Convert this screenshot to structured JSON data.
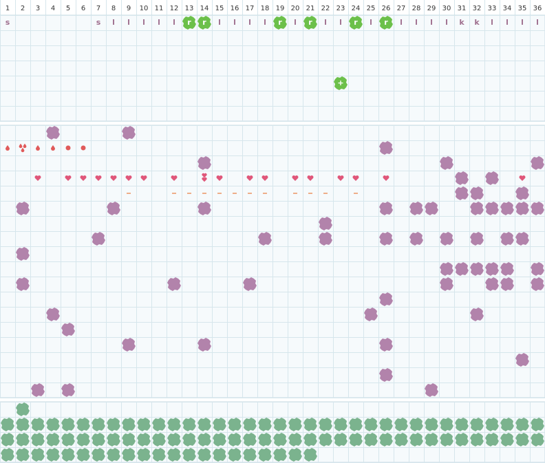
{
  "columns": [
    1,
    2,
    3,
    4,
    5,
    6,
    7,
    8,
    9,
    10,
    11,
    12,
    13,
    14,
    15,
    16,
    17,
    18,
    19,
    20,
    21,
    22,
    23,
    24,
    25,
    26,
    27,
    28,
    29,
    30,
    31,
    32,
    33,
    34,
    35,
    36
  ],
  "letter_row": [
    "s",
    null,
    null,
    null,
    null,
    null,
    "s",
    "l",
    "l",
    "l",
    "l",
    "l",
    "r",
    "r",
    "l",
    "l",
    "l",
    "l",
    "r",
    "l",
    "r",
    "l",
    "l",
    "r",
    "l",
    "r",
    "l",
    "l",
    "l",
    "l",
    "k",
    "k",
    "l",
    "l",
    "l",
    "l"
  ],
  "marker": "+"
}
